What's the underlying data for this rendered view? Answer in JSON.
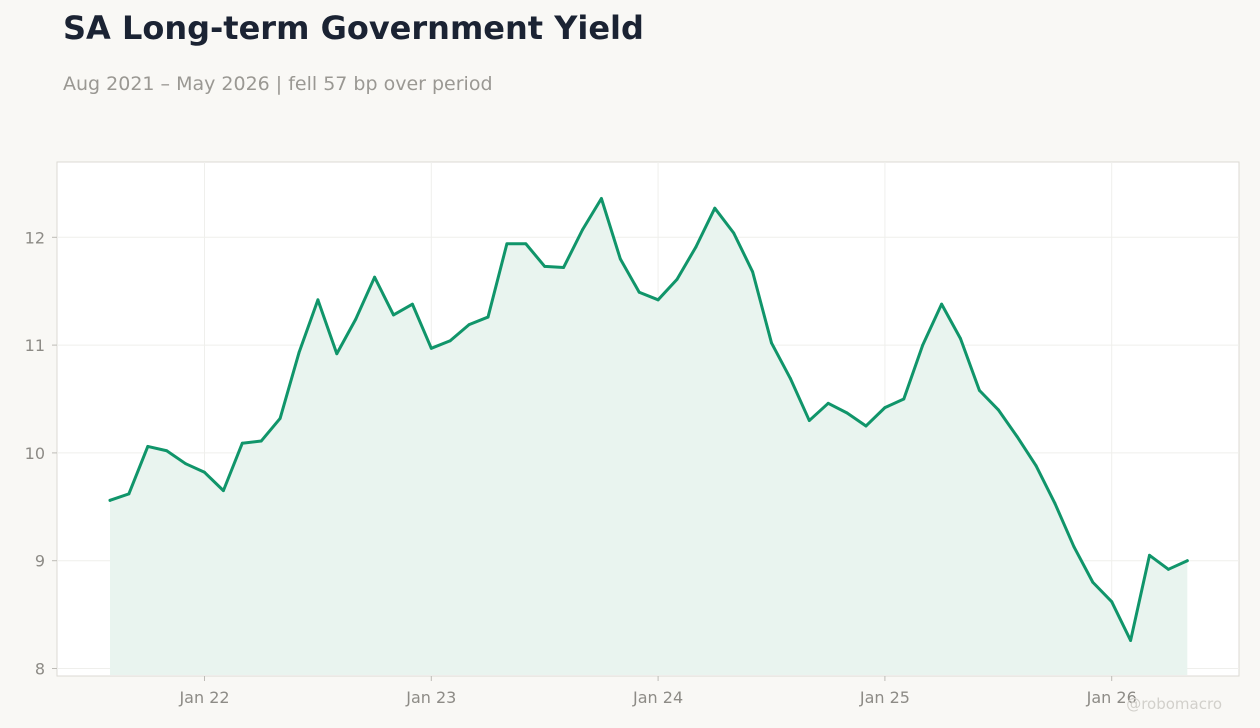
{
  "chart_data": {
    "type": "area",
    "title": "SA Long-term Government Yield",
    "subtitle": "Aug 2021 – May 2026 | fell 57 bp over period",
    "xlabel": "",
    "ylabel": "",
    "x_start": "2021-08",
    "x_end": "2026-05",
    "x_ticks": [
      {
        "date": "2022-01",
        "label": "Jan 22"
      },
      {
        "date": "2023-01",
        "label": "Jan 23"
      },
      {
        "date": "2024-01",
        "label": "Jan 24"
      },
      {
        "date": "2025-01",
        "label": "Jan 25"
      },
      {
        "date": "2026-01",
        "label": "Jan 26"
      }
    ],
    "y_ticks": [
      8,
      9,
      10,
      11,
      12
    ],
    "ylim": [
      7.94,
      12.7
    ],
    "grid": true,
    "legend": "none",
    "series": [
      {
        "color": "#10956a",
        "fill": "#e9f4ef",
        "x": [
          "2021-08",
          "2021-09",
          "2021-10",
          "2021-11",
          "2021-12",
          "2022-01",
          "2022-02",
          "2022-03",
          "2022-04",
          "2022-05",
          "2022-06",
          "2022-07",
          "2022-08",
          "2022-09",
          "2022-10",
          "2022-11",
          "2022-12",
          "2023-01",
          "2023-02",
          "2023-03",
          "2023-04",
          "2023-05",
          "2023-06",
          "2023-07",
          "2023-08",
          "2023-09",
          "2023-10",
          "2023-11",
          "2023-12",
          "2024-01",
          "2024-02",
          "2024-03",
          "2024-04",
          "2024-05",
          "2024-06",
          "2024-07",
          "2024-08",
          "2024-09",
          "2024-10",
          "2024-11",
          "2024-12",
          "2025-01",
          "2025-02",
          "2025-03",
          "2025-04",
          "2025-05",
          "2025-06",
          "2025-07",
          "2025-08",
          "2025-09",
          "2025-10",
          "2025-11",
          "2025-12",
          "2026-01",
          "2026-02",
          "2026-03",
          "2026-04",
          "2026-05"
        ],
        "values": [
          9.56,
          9.62,
          10.06,
          10.02,
          9.9,
          9.82,
          9.65,
          10.09,
          10.11,
          10.32,
          10.93,
          11.42,
          10.92,
          11.24,
          11.63,
          11.28,
          11.38,
          10.97,
          11.04,
          11.19,
          11.26,
          11.94,
          11.94,
          11.73,
          11.72,
          12.07,
          12.36,
          11.8,
          11.49,
          11.42,
          11.61,
          11.91,
          12.27,
          12.04,
          11.68,
          11.02,
          10.69,
          10.3,
          10.46,
          10.37,
          10.25,
          10.42,
          10.5,
          11.0,
          11.38,
          11.06,
          10.58,
          10.4,
          10.15,
          9.88,
          9.53,
          9.13,
          8.8,
          8.62,
          8.26,
          9.05,
          8.92,
          9.0
        ]
      }
    ]
  },
  "watermark": "@robomacro",
  "colors": {
    "background": "#f9f8f5",
    "plot_background": "#ffffff",
    "line": "#10956a",
    "fill": "#e9f4ef",
    "grid": "#efefec",
    "tick_text": "#8d8b86",
    "title_text": "#1b2333",
    "subtitle_text": "#9a9893"
  }
}
